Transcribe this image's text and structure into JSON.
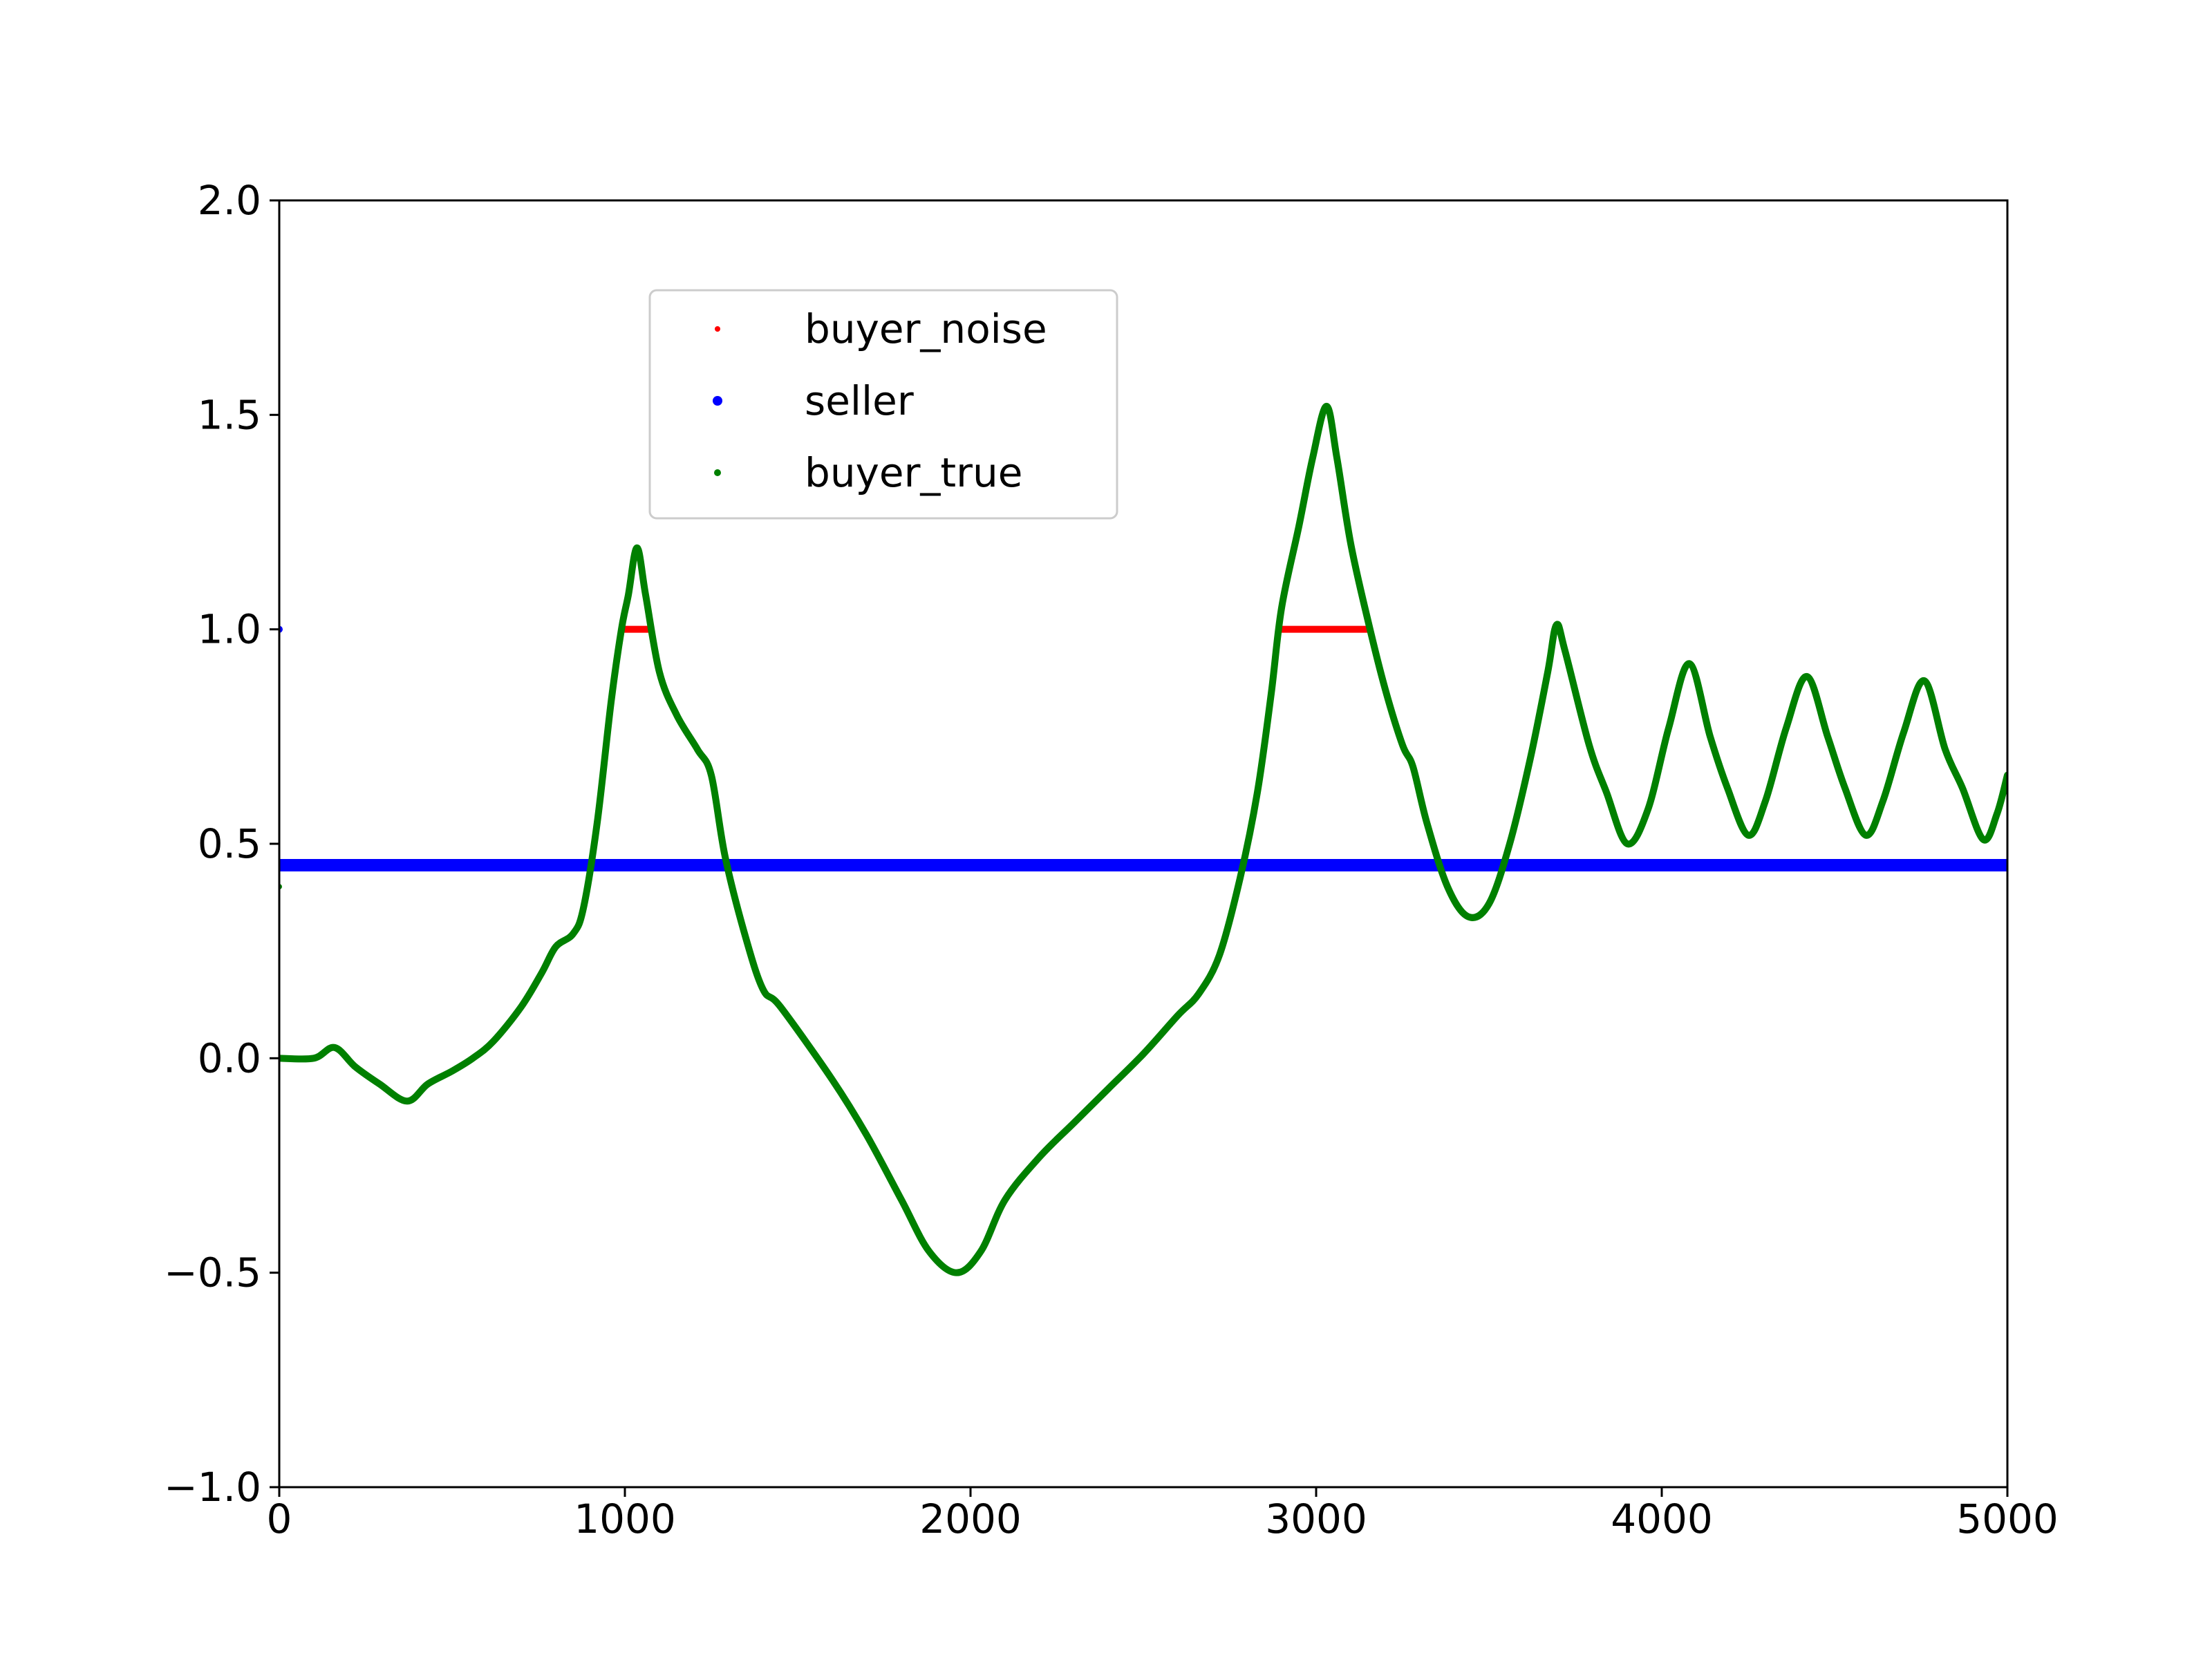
{
  "chart_data": {
    "type": "scatter",
    "title": "",
    "xlabel": "",
    "ylabel": "",
    "xlim": [
      0,
      5000
    ],
    "ylim": [
      -1.0,
      2.0
    ],
    "grid": false,
    "legend_position": "upper-center",
    "x_ticks": [
      {
        "value": 0,
        "label": "0"
      },
      {
        "value": 1000,
        "label": "1000"
      },
      {
        "value": 2000,
        "label": "2000"
      },
      {
        "value": 3000,
        "label": "3000"
      },
      {
        "value": 4000,
        "label": "4000"
      },
      {
        "value": 5000,
        "label": "5000"
      }
    ],
    "y_ticks": [
      {
        "value": -1.0,
        "label": "−1.0"
      },
      {
        "value": -0.5,
        "label": "−0.5"
      },
      {
        "value": 0.0,
        "label": "0.0"
      },
      {
        "value": 0.5,
        "label": "0.5"
      },
      {
        "value": 1.0,
        "label": "1.0"
      },
      {
        "value": 1.5,
        "label": "1.5"
      },
      {
        "value": 2.0,
        "label": "2.0"
      }
    ],
    "series": [
      {
        "name": "buyer_noise",
        "color": "#ff0000",
        "marker": "point-small",
        "segments": [
          [
            [
              990,
              1.0
            ],
            [
              1070,
              1.0
            ]
          ],
          [
            [
              2900,
              1.0
            ],
            [
              3150,
              1.0
            ]
          ]
        ]
      },
      {
        "name": "seller",
        "color": "#0000ff",
        "marker": "point-large",
        "points": [
          [
            0,
            1.0
          ],
          [
            0,
            0.45
          ],
          [
            5000,
            0.45
          ]
        ]
      },
      {
        "name": "buyer_true",
        "color": "#008000",
        "marker": "point-medium",
        "points": [
          [
            0,
            0.0
          ],
          [
            100,
            0.0
          ],
          [
            160,
            0.025
          ],
          [
            220,
            -0.02
          ],
          [
            290,
            -0.06
          ],
          [
            370,
            -0.1
          ],
          [
            430,
            -0.06
          ],
          [
            500,
            -0.03
          ],
          [
            560,
            0.0
          ],
          [
            620,
            0.04
          ],
          [
            700,
            0.12
          ],
          [
            760,
            0.2
          ],
          [
            800,
            0.26
          ],
          [
            850,
            0.29
          ],
          [
            880,
            0.35
          ],
          [
            920,
            0.55
          ],
          [
            960,
            0.83
          ],
          [
            990,
            1.0
          ],
          [
            1010,
            1.08
          ],
          [
            1035,
            1.19
          ],
          [
            1060,
            1.08
          ],
          [
            1100,
            0.9
          ],
          [
            1150,
            0.8
          ],
          [
            1210,
            0.72
          ],
          [
            1250,
            0.66
          ],
          [
            1290,
            0.47
          ],
          [
            1350,
            0.28
          ],
          [
            1400,
            0.16
          ],
          [
            1450,
            0.12
          ],
          [
            1600,
            -0.05
          ],
          [
            1700,
            -0.18
          ],
          [
            1800,
            -0.33
          ],
          [
            1880,
            -0.45
          ],
          [
            1960,
            -0.5
          ],
          [
            2030,
            -0.45
          ],
          [
            2100,
            -0.33
          ],
          [
            2200,
            -0.23
          ],
          [
            2300,
            -0.15
          ],
          [
            2400,
            -0.07
          ],
          [
            2500,
            0.01
          ],
          [
            2600,
            0.1
          ],
          [
            2660,
            0.15
          ],
          [
            2720,
            0.24
          ],
          [
            2780,
            0.42
          ],
          [
            2830,
            0.62
          ],
          [
            2870,
            0.85
          ],
          [
            2900,
            1.05
          ],
          [
            2950,
            1.24
          ],
          [
            2990,
            1.4
          ],
          [
            3030,
            1.52
          ],
          [
            3060,
            1.4
          ],
          [
            3100,
            1.2
          ],
          [
            3150,
            1.02
          ],
          [
            3200,
            0.86
          ],
          [
            3250,
            0.73
          ],
          [
            3280,
            0.68
          ],
          [
            3320,
            0.55
          ],
          [
            3380,
            0.4
          ],
          [
            3440,
            0.33
          ],
          [
            3500,
            0.36
          ],
          [
            3560,
            0.5
          ],
          [
            3620,
            0.7
          ],
          [
            3670,
            0.9
          ],
          [
            3695,
            1.01
          ],
          [
            3720,
            0.95
          ],
          [
            3790,
            0.73
          ],
          [
            3840,
            0.62
          ],
          [
            3900,
            0.5
          ],
          [
            3960,
            0.58
          ],
          [
            4020,
            0.77
          ],
          [
            4080,
            0.92
          ],
          [
            4140,
            0.75
          ],
          [
            4190,
            0.63
          ],
          [
            4250,
            0.52
          ],
          [
            4300,
            0.6
          ],
          [
            4360,
            0.77
          ],
          [
            4420,
            0.89
          ],
          [
            4480,
            0.75
          ],
          [
            4530,
            0.63
          ],
          [
            4590,
            0.52
          ],
          [
            4640,
            0.6
          ],
          [
            4700,
            0.76
          ],
          [
            4760,
            0.88
          ],
          [
            4820,
            0.72
          ],
          [
            4870,
            0.63
          ],
          [
            4930,
            0.51
          ],
          [
            4970,
            0.57
          ],
          [
            5000,
            0.66
          ]
        ]
      }
    ]
  }
}
